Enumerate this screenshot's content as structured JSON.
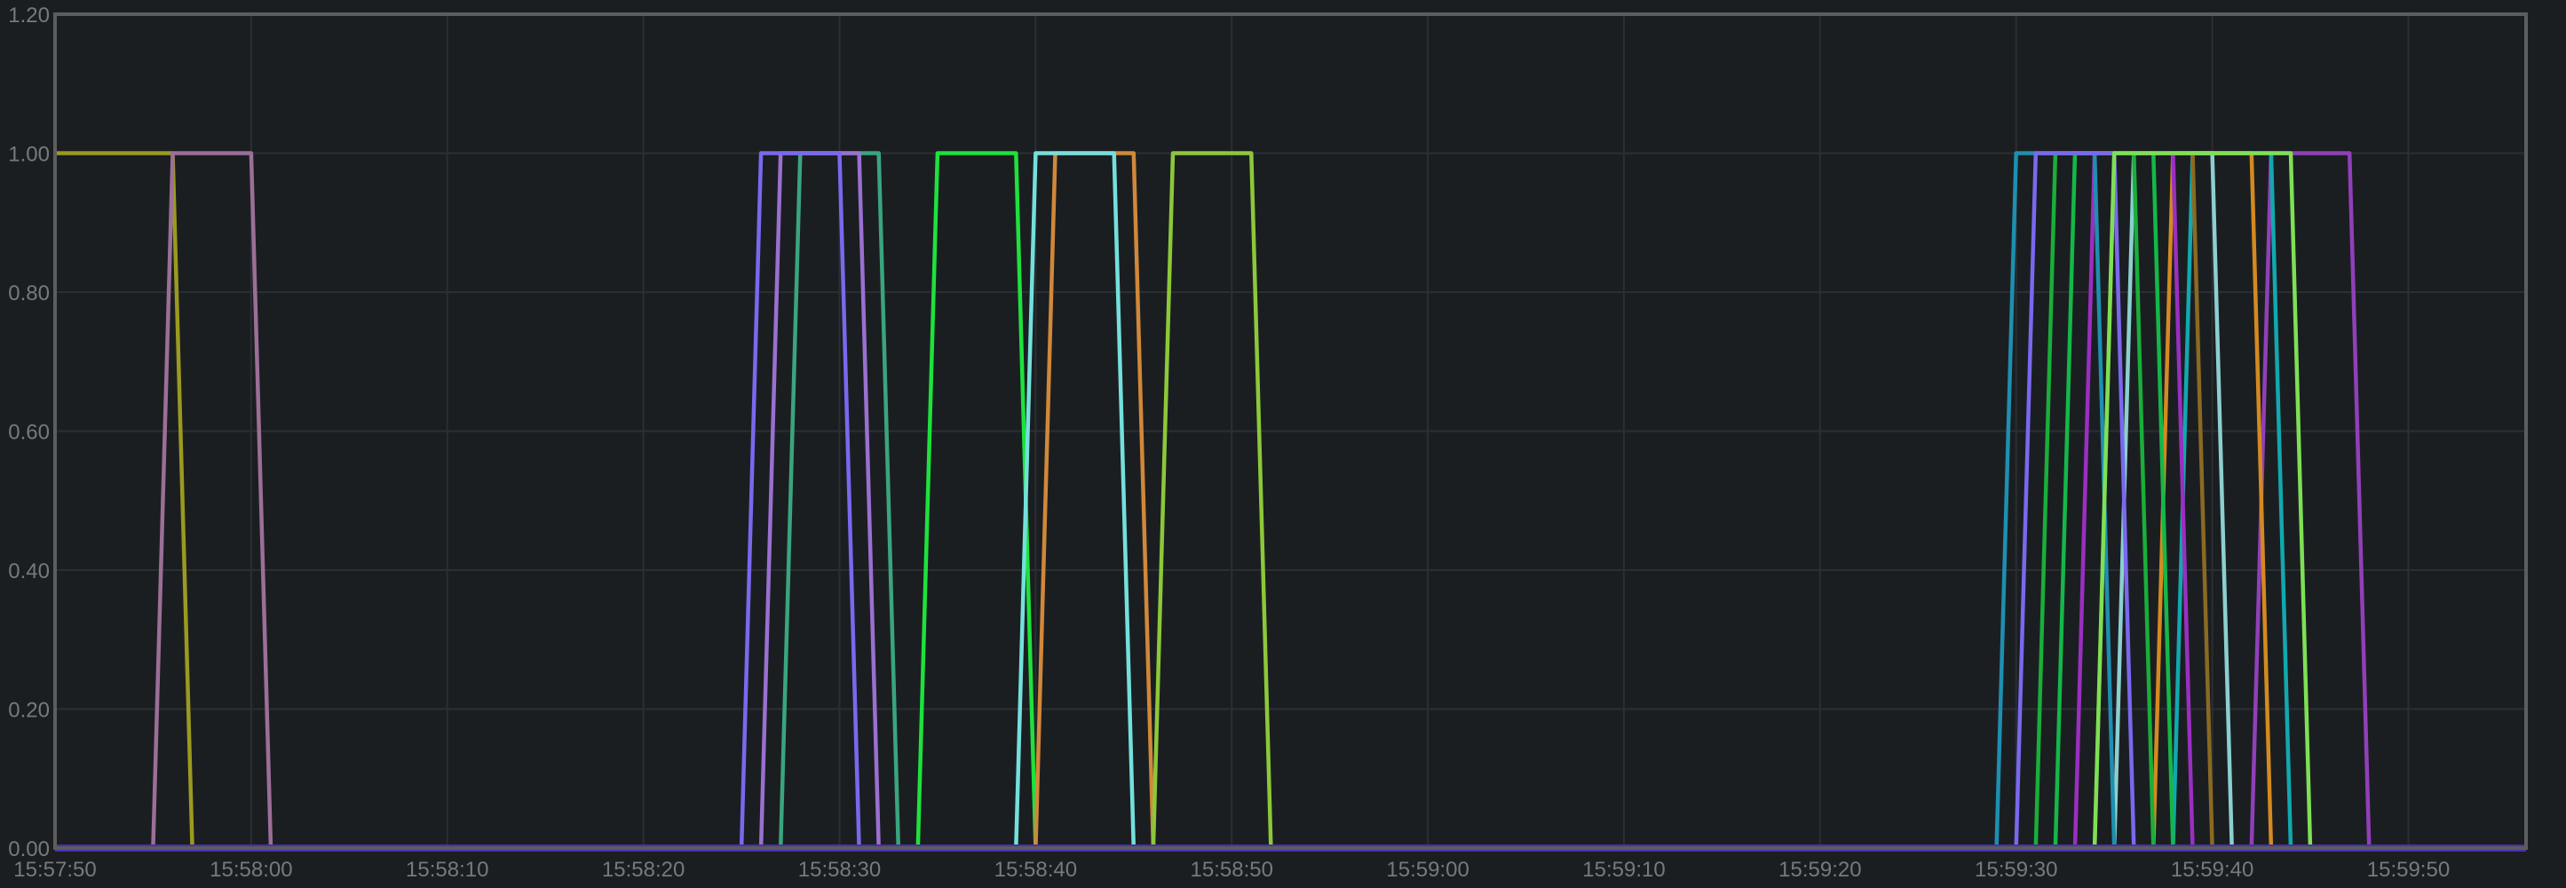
{
  "chart_data": {
    "type": "line",
    "title": "",
    "xlabel": "",
    "ylabel": "",
    "xlim": [
      "15:57:50",
      "15:59:56"
    ],
    "ylim": [
      0,
      1.2
    ],
    "grid": true,
    "legend": "none",
    "y_ticks": [
      "0.00",
      "0.20",
      "0.40",
      "0.60",
      "0.80",
      "1.00",
      "1.20"
    ],
    "x_ticks": [
      "15:57:50",
      "15:58:00",
      "15:58:10",
      "15:58:20",
      "15:58:30",
      "15:58:40",
      "15:58:50",
      "15:59:00",
      "15:59:10",
      "15:59:20",
      "15:59:30",
      "15:59:40",
      "15:59:50"
    ],
    "colors": {
      "background": "#1b1e21",
      "grid": "#2b2e32",
      "border": "#5c5d5f",
      "tick_text": "#76797d"
    },
    "series": [
      {
        "color": "#9a9a20",
        "points": [
          [
            "15:57:50",
            1
          ],
          [
            "15:57:56",
            1
          ],
          [
            "15:57:57",
            0
          ]
        ]
      },
      {
        "color": "#9b6f97",
        "points": [
          [
            "15:57:55",
            0
          ],
          [
            "15:57:56",
            1
          ],
          [
            "15:58:00",
            1
          ],
          [
            "15:58:01",
            0
          ]
        ]
      },
      {
        "color": "#3aa57f",
        "points": [
          [
            "15:58:27",
            0
          ],
          [
            "15:58:28",
            1
          ],
          [
            "15:58:32",
            1
          ],
          [
            "15:58:33",
            0
          ]
        ]
      },
      {
        "color": "#9a70d0",
        "points": [
          [
            "15:58:26",
            0
          ],
          [
            "15:58:27",
            1
          ],
          [
            "15:58:31",
            1
          ],
          [
            "15:58:32",
            0
          ]
        ]
      },
      {
        "color": "#7b68ee",
        "points": [
          [
            "15:58:25",
            0
          ],
          [
            "15:58:26",
            1
          ],
          [
            "15:58:30",
            1
          ],
          [
            "15:58:31",
            0
          ]
        ]
      },
      {
        "color": "#1de23c",
        "points": [
          [
            "15:58:34",
            0
          ],
          [
            "15:58:35",
            1
          ],
          [
            "15:58:39",
            1
          ],
          [
            "15:58:40",
            0
          ]
        ]
      },
      {
        "color": "#d0883a",
        "points": [
          [
            "15:58:40",
            0
          ],
          [
            "15:58:41",
            1
          ],
          [
            "15:58:45",
            1
          ],
          [
            "15:58:46",
            0
          ]
        ]
      },
      {
        "color": "#74e0dc",
        "points": [
          [
            "15:58:39",
            0
          ],
          [
            "15:58:40",
            1
          ],
          [
            "15:58:44",
            1
          ],
          [
            "15:58:45",
            0
          ]
        ]
      },
      {
        "color": "#8cc83a",
        "points": [
          [
            "15:58:46",
            0
          ],
          [
            "15:58:47",
            1
          ],
          [
            "15:58:51",
            1
          ],
          [
            "15:58:52",
            0
          ]
        ]
      },
      {
        "color": "#9040b8",
        "points": [
          [
            "15:59:42",
            0
          ],
          [
            "15:59:43",
            1
          ],
          [
            "15:59:47",
            1
          ],
          [
            "15:59:48",
            0
          ]
        ]
      },
      {
        "color": "#12a8b0",
        "points": [
          [
            "15:59:38",
            0
          ],
          [
            "15:59:39",
            1
          ],
          [
            "15:59:43",
            1
          ],
          [
            "15:59:44",
            0
          ]
        ]
      },
      {
        "color": "#d48a20",
        "points": [
          [
            "15:59:37",
            0
          ],
          [
            "15:59:38",
            1
          ],
          [
            "15:59:42",
            1
          ],
          [
            "15:59:43",
            0
          ]
        ]
      },
      {
        "color": "#8ccfd0",
        "points": [
          [
            "15:59:35",
            0
          ],
          [
            "15:59:36",
            1
          ],
          [
            "15:59:40",
            1
          ],
          [
            "15:59:41",
            0
          ]
        ]
      },
      {
        "color": "#8a6a22",
        "points": [
          [
            "15:59:34",
            0
          ],
          [
            "15:59:35",
            1
          ],
          [
            "15:59:39",
            1
          ],
          [
            "15:59:40",
            0
          ]
        ]
      },
      {
        "color": "#9a2fc0",
        "points": [
          [
            "15:59:33",
            0
          ],
          [
            "15:59:34",
            1
          ],
          [
            "15:59:38",
            1
          ],
          [
            "15:59:39",
            0
          ]
        ]
      },
      {
        "color": "#14b848",
        "points": [
          [
            "15:59:32",
            0
          ],
          [
            "15:59:33",
            1
          ],
          [
            "15:59:37",
            1
          ],
          [
            "15:59:38",
            0
          ]
        ]
      },
      {
        "color": "#1aae3a",
        "points": [
          [
            "15:59:31",
            0
          ],
          [
            "15:59:32",
            1
          ],
          [
            "15:59:36",
            1
          ],
          [
            "15:59:37",
            0
          ]
        ]
      },
      {
        "color": "#1e8fb0",
        "points": [
          [
            "15:59:29",
            0
          ],
          [
            "15:59:30",
            1
          ],
          [
            "15:59:34",
            1
          ],
          [
            "15:59:35",
            0
          ]
        ]
      },
      {
        "color": "#7b68ee",
        "points": [
          [
            "15:59:30",
            0
          ],
          [
            "15:59:31",
            1
          ],
          [
            "15:59:35",
            1
          ],
          [
            "15:59:36",
            0
          ]
        ]
      },
      {
        "color": "#7ee055",
        "points": [
          [
            "15:59:34",
            0
          ],
          [
            "15:59:35",
            1
          ],
          [
            "15:59:44",
            1
          ],
          [
            "15:59:45",
            0
          ]
        ]
      },
      {
        "color": "#4b2eb0",
        "points": [
          [
            "15:57:50",
            0
          ],
          [
            "15:59:56",
            0
          ]
        ]
      }
    ]
  }
}
